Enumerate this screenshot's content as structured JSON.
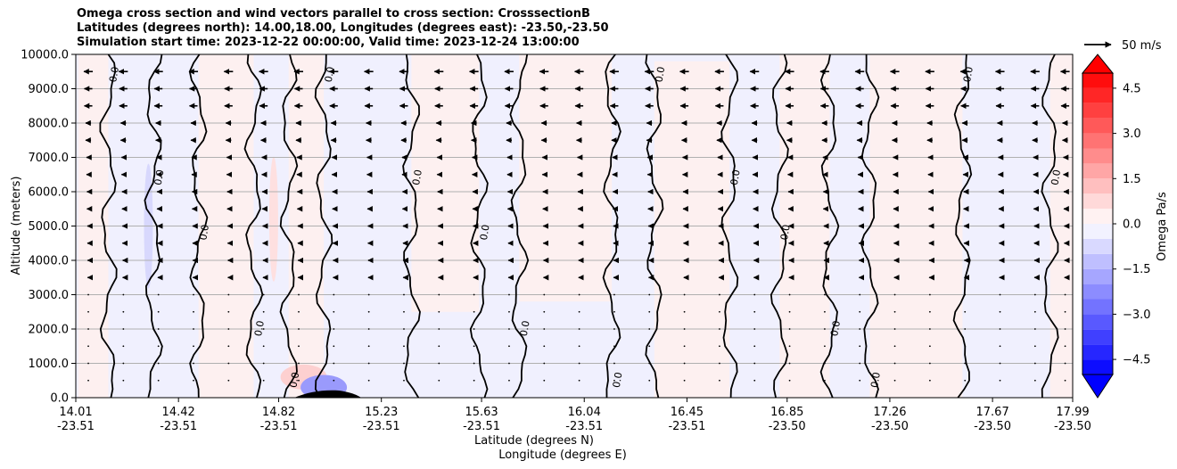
{
  "chart_data": {
    "type": "heatmap",
    "subtype": "cross-section filled contour with wind vectors",
    "title_lines": [
      "Omega cross section and wind vectors parallel to cross section: CrosssectionB",
      "Latitudes (degrees north): 14.00,18.00, Longitudes (degrees east): -23.50,-23.50",
      "Simulation start time: 2023-12-22 00:00:00, Valid time: 2023-12-24 13:00:00"
    ],
    "ylabel": "Altitude (meters)",
    "xlabel_lines": [
      "Latitude (degrees N)",
      "Longitude (degrees E)"
    ],
    "ylim": [
      0,
      10000
    ],
    "yticks": [
      0,
      1000,
      2000,
      3000,
      4000,
      5000,
      6000,
      7000,
      8000,
      9000,
      10000
    ],
    "ytick_labels": [
      "0.0",
      "1000.0",
      "2000.0",
      "3000.0",
      "4000.0",
      "5000.0",
      "6000.0",
      "7000.0",
      "8000.0",
      "9000.0",
      "10000.0"
    ],
    "x_range": [
      14.01,
      17.99
    ],
    "xticks": [
      {
        "lat": 14.01,
        "lat_label": "14.01",
        "lon_label": "-23.51"
      },
      {
        "lat": 14.42,
        "lat_label": "14.42",
        "lon_label": "-23.51"
      },
      {
        "lat": 14.82,
        "lat_label": "14.82",
        "lon_label": "-23.51"
      },
      {
        "lat": 15.23,
        "lat_label": "15.23",
        "lon_label": "-23.51"
      },
      {
        "lat": 15.63,
        "lat_label": "15.63",
        "lon_label": "-23.51"
      },
      {
        "lat": 16.04,
        "lat_label": "16.04",
        "lon_label": "-23.51"
      },
      {
        "lat": 16.45,
        "lat_label": "16.45",
        "lon_label": "-23.51"
      },
      {
        "lat": 16.85,
        "lat_label": "16.85",
        "lon_label": "-23.50"
      },
      {
        "lat": 17.26,
        "lat_label": "17.26",
        "lon_label": "-23.50"
      },
      {
        "lat": 17.67,
        "lat_label": "17.67",
        "lon_label": "-23.50"
      },
      {
        "lat": 17.99,
        "lat_label": "17.99",
        "lon_label": "-23.50"
      }
    ],
    "grid": "horizontal",
    "colorbar": {
      "label": "Omega Pa/s",
      "placement": "right",
      "range": [
        -5,
        5
      ],
      "ticks": [
        4.5,
        3.0,
        1.5,
        0.0,
        -1.5,
        -3.0,
        -4.5
      ],
      "tick_labels": [
        "4.5",
        "3.0",
        "1.5",
        "0.0",
        "−1.5",
        "−3.0",
        "−4.5"
      ],
      "extend": "both",
      "colormap": "bwr"
    },
    "quiver_key": {
      "label": "50 m/s",
      "magnitude": 50
    },
    "contour_level_label": "0.0",
    "zero_contour_lat": [
      14.14,
      14.32,
      14.5,
      14.72,
      14.86,
      15.0,
      15.35,
      15.62,
      15.78,
      16.15,
      16.32,
      16.62,
      16.82,
      17.02,
      17.18,
      17.55,
      17.9
    ],
    "positive_regions": [
      {
        "lat": [
          14.02,
          14.14
        ],
        "alt": [
          0,
          10000
        ]
      },
      {
        "lat": [
          14.5,
          14.72
        ],
        "alt": [
          0,
          10000
        ]
      },
      {
        "lat": [
          14.86,
          15.0
        ],
        "alt": [
          0,
          10000
        ]
      },
      {
        "lat": [
          15.35,
          15.62
        ],
        "alt": [
          2500,
          10000
        ]
      },
      {
        "lat": [
          15.78,
          16.15
        ],
        "alt": [
          2800,
          10000
        ]
      },
      {
        "lat": [
          16.32,
          16.62
        ],
        "alt": [
          0,
          9800
        ]
      },
      {
        "lat": [
          16.82,
          17.02
        ],
        "alt": [
          0,
          10000
        ]
      },
      {
        "lat": [
          17.18,
          17.55
        ],
        "alt": [
          0,
          10000
        ]
      },
      {
        "lat": [
          17.9,
          17.99
        ],
        "alt": [
          0,
          10000
        ]
      }
    ],
    "strong_features": [
      {
        "lat": 14.8,
        "alt": 5200,
        "omega": 0.8
      },
      {
        "lat": 14.92,
        "alt": 600,
        "omega": 1.0
      },
      {
        "lat": 15.0,
        "alt": 300,
        "omega": -1.5
      },
      {
        "lat": 14.3,
        "alt": 5000,
        "omega": -0.8
      }
    ],
    "vector_rows_alt": [
      9500,
      9000,
      8500,
      8000,
      7500,
      7000,
      6500,
      6000,
      5500,
      5000,
      4500,
      4000,
      3500,
      3000,
      2500,
      2000,
      1500,
      1000,
      500
    ],
    "vector_cols_lat": [
      14.06,
      14.2,
      14.34,
      14.48,
      14.62,
      14.76,
      14.9,
      15.04,
      15.18,
      15.32,
      15.46,
      15.6,
      15.74,
      15.88,
      16.02,
      16.16,
      16.3,
      16.44,
      16.58,
      16.72,
      16.86,
      17.0,
      17.14,
      17.28,
      17.42,
      17.56,
      17.7,
      17.84,
      17.96
    ],
    "wind_profile_alt": [
      500,
      1500,
      2500,
      3500,
      4500,
      5500,
      6500,
      7500,
      8500,
      9500
    ],
    "wind_profile_speed": [
      0.6,
      0.6,
      1,
      1.5,
      2,
      3,
      4,
      6,
      9,
      10
    ]
  }
}
